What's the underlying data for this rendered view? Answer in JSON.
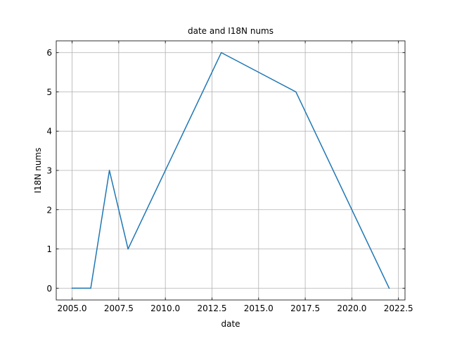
{
  "chart_data": {
    "type": "line",
    "title": "date and I18N nums",
    "xlabel": "date",
    "ylabel": "I18N nums",
    "x": [
      2005,
      2006,
      2007,
      2008,
      2013,
      2017,
      2022
    ],
    "series": [
      {
        "values": [
          0,
          0,
          3,
          1,
          6,
          5,
          0
        ],
        "color": "#1f77b4"
      }
    ],
    "xlim": [
      2004.15,
      2022.85
    ],
    "ylim": [
      -0.3,
      6.3
    ],
    "xticks": [
      2005.0,
      2007.5,
      2010.0,
      2012.5,
      2015.0,
      2017.5,
      2020.0,
      2022.5
    ],
    "xtick_labels": [
      "2005.0",
      "2007.5",
      "2010.0",
      "2012.5",
      "2015.0",
      "2017.5",
      "2020.0",
      "2022.5"
    ],
    "yticks": [
      0,
      1,
      2,
      3,
      4,
      5,
      6
    ],
    "ytick_labels": [
      "0",
      "1",
      "2",
      "3",
      "4",
      "5",
      "6"
    ],
    "grid": true,
    "tick_direction": "in"
  }
}
